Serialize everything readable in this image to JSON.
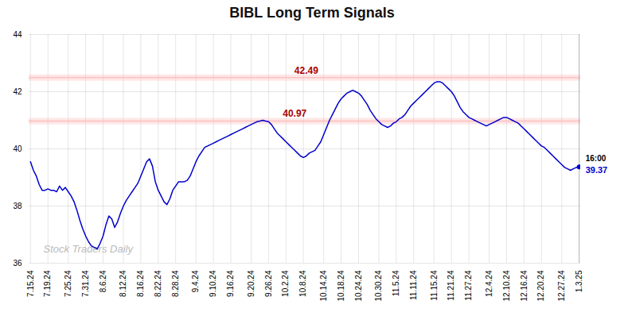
{
  "chart_data": {
    "type": "line",
    "title": "BIBL Long Term Signals",
    "color": "#0000cc",
    "grid": true,
    "ylim": [
      36,
      44
    ],
    "yticks": [
      36,
      38,
      40,
      42,
      44
    ],
    "categories": [
      "7.15.24",
      null,
      null,
      null,
      null,
      null,
      "7.19.24",
      null,
      null,
      null,
      null,
      null,
      null,
      "7.25.24",
      null,
      null,
      null,
      null,
      null,
      "7.31.24",
      null,
      null,
      null,
      null,
      null,
      "8.6.24",
      null,
      null,
      null,
      null,
      null,
      null,
      "8.12.24",
      null,
      null,
      null,
      null,
      null,
      "8.16.24",
      null,
      null,
      null,
      null,
      null,
      "8.22.24",
      null,
      null,
      null,
      null,
      null,
      "8.28.24",
      null,
      null,
      null,
      null,
      null,
      null,
      "9.4.24",
      null,
      null,
      null,
      null,
      null,
      "9.10.24",
      null,
      null,
      null,
      null,
      null,
      "9.16.24",
      null,
      null,
      null,
      null,
      null,
      null,
      "9.20.24",
      null,
      null,
      null,
      null,
      null,
      "9.26.24",
      null,
      null,
      null,
      null,
      null,
      "10.2.24",
      null,
      null,
      null,
      null,
      null,
      "10.8.24",
      null,
      null,
      null,
      null,
      null,
      null,
      "10.14.24",
      null,
      null,
      null,
      null,
      null,
      "10.18.24",
      null,
      null,
      null,
      null,
      null,
      "10.24.24",
      null,
      null,
      null,
      null,
      null,
      null,
      "10.30.24",
      null,
      null,
      null,
      null,
      null,
      "11.5.24",
      null,
      null,
      null,
      null,
      null,
      "11.11.24",
      null,
      null,
      null,
      null,
      null,
      null,
      "11.15.24",
      null,
      null,
      null,
      null,
      null,
      "11.21.24",
      null,
      null,
      null,
      null,
      null,
      "11.27.24",
      null,
      null,
      null,
      null,
      null,
      null,
      "12.4.24",
      null,
      null,
      null,
      null,
      null,
      "12.10.24",
      null,
      null,
      null,
      null,
      null,
      "12.16.24",
      null,
      null,
      null,
      null,
      null,
      "12.20.24",
      null,
      null,
      null,
      null,
      null,
      null,
      "12.27.24",
      null,
      null,
      null,
      null,
      null,
      "1.3.25"
    ],
    "values": [
      39.55,
      39.25,
      39.05,
      38.75,
      38.55,
      38.55,
      38.6,
      38.55,
      38.55,
      38.5,
      38.7,
      38.55,
      38.65,
      38.5,
      38.35,
      38.15,
      37.85,
      37.5,
      37.2,
      36.95,
      36.75,
      36.6,
      36.55,
      36.5,
      36.7,
      36.95,
      37.35,
      37.65,
      37.55,
      37.25,
      37.45,
      37.75,
      38.0,
      38.2,
      38.35,
      38.5,
      38.65,
      38.8,
      39.05,
      39.3,
      39.55,
      39.65,
      39.4,
      38.85,
      38.55,
      38.35,
      38.15,
      38.05,
      38.25,
      38.55,
      38.7,
      38.85,
      38.85,
      38.85,
      38.9,
      39.05,
      39.3,
      39.55,
      39.75,
      39.9,
      40.05,
      40.1,
      40.15,
      40.2,
      40.25,
      40.3,
      40.35,
      40.4,
      40.45,
      40.5,
      40.55,
      40.6,
      40.65,
      40.7,
      40.75,
      40.8,
      40.85,
      40.9,
      40.95,
      40.97,
      41.0,
      40.97,
      40.95,
      40.85,
      40.7,
      40.55,
      40.45,
      40.35,
      40.25,
      40.15,
      40.05,
      39.95,
      39.85,
      39.75,
      39.7,
      39.75,
      39.85,
      39.9,
      39.95,
      40.1,
      40.25,
      40.5,
      40.75,
      41.0,
      41.2,
      41.4,
      41.6,
      41.75,
      41.85,
      41.95,
      42.0,
      42.05,
      42.0,
      41.95,
      41.85,
      41.7,
      41.55,
      41.35,
      41.2,
      41.05,
      40.95,
      40.85,
      40.8,
      40.75,
      40.8,
      40.9,
      40.95,
      41.05,
      41.1,
      41.2,
      41.35,
      41.5,
      41.6,
      41.7,
      41.8,
      41.9,
      42.0,
      42.1,
      42.2,
      42.3,
      42.35,
      42.35,
      42.3,
      42.2,
      42.1,
      42.0,
      41.85,
      41.65,
      41.45,
      41.3,
      41.2,
      41.1,
      41.05,
      41.0,
      40.95,
      40.9,
      40.85,
      40.8,
      40.85,
      40.9,
      40.95,
      41.0,
      41.05,
      41.1,
      41.1,
      41.05,
      41.0,
      40.95,
      40.9,
      40.8,
      40.7,
      40.6,
      40.5,
      40.4,
      40.3,
      40.2,
      40.1,
      40.05,
      39.95,
      39.85,
      39.75,
      39.65,
      39.55,
      39.45,
      39.35,
      39.3,
      39.25,
      39.3,
      39.35,
      39.37
    ],
    "hlines": [
      {
        "value": 42.49,
        "color": "#ffbbbb"
      },
      {
        "value": 40.97,
        "color": "#ffbbbb"
      }
    ],
    "annotations": [
      {
        "text": "42.49",
        "y": 42.49,
        "color": "#aa0000"
      },
      {
        "text": "40.97",
        "y": 40.97,
        "color": "#aa0000"
      }
    ],
    "end_label": {
      "time": "16:00",
      "value": 39.37
    },
    "watermark": {
      "text": "Stock Traders Daily",
      "color": "#bbbbbb"
    }
  }
}
